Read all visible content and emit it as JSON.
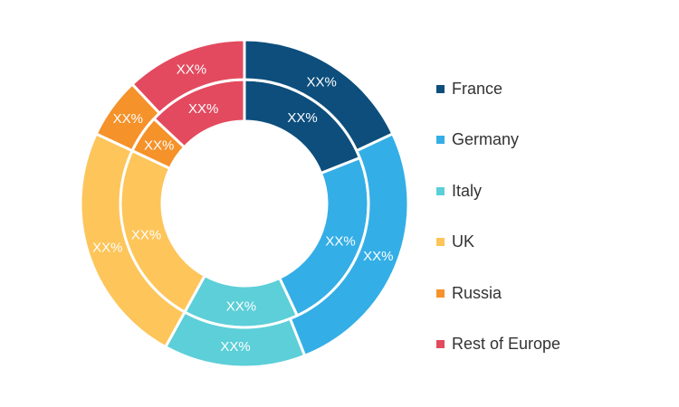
{
  "chart_data": {
    "type": "donut",
    "categories": [
      "France",
      "Germany",
      "Italy",
      "UK",
      "Russia",
      "Rest of Europe"
    ],
    "colors": [
      "#0d4e7c",
      "#34aee6",
      "#5ccfd8",
      "#fdc55a",
      "#f5922a",
      "#e34a5f"
    ],
    "series": [
      {
        "values": [
          19,
          24,
          15,
          24,
          5,
          13
        ],
        "labels": [
          "XX%",
          "XX%",
          "XX%",
          "XX%",
          "XX%",
          "XX%"
        ]
      },
      {
        "values": [
          18,
          26,
          14,
          24,
          6,
          12
        ],
        "labels": [
          "XX%",
          "XX%",
          "XX%",
          "XX%",
          "XX%",
          "XX%"
        ]
      }
    ],
    "legend_position": "right",
    "title": ""
  }
}
